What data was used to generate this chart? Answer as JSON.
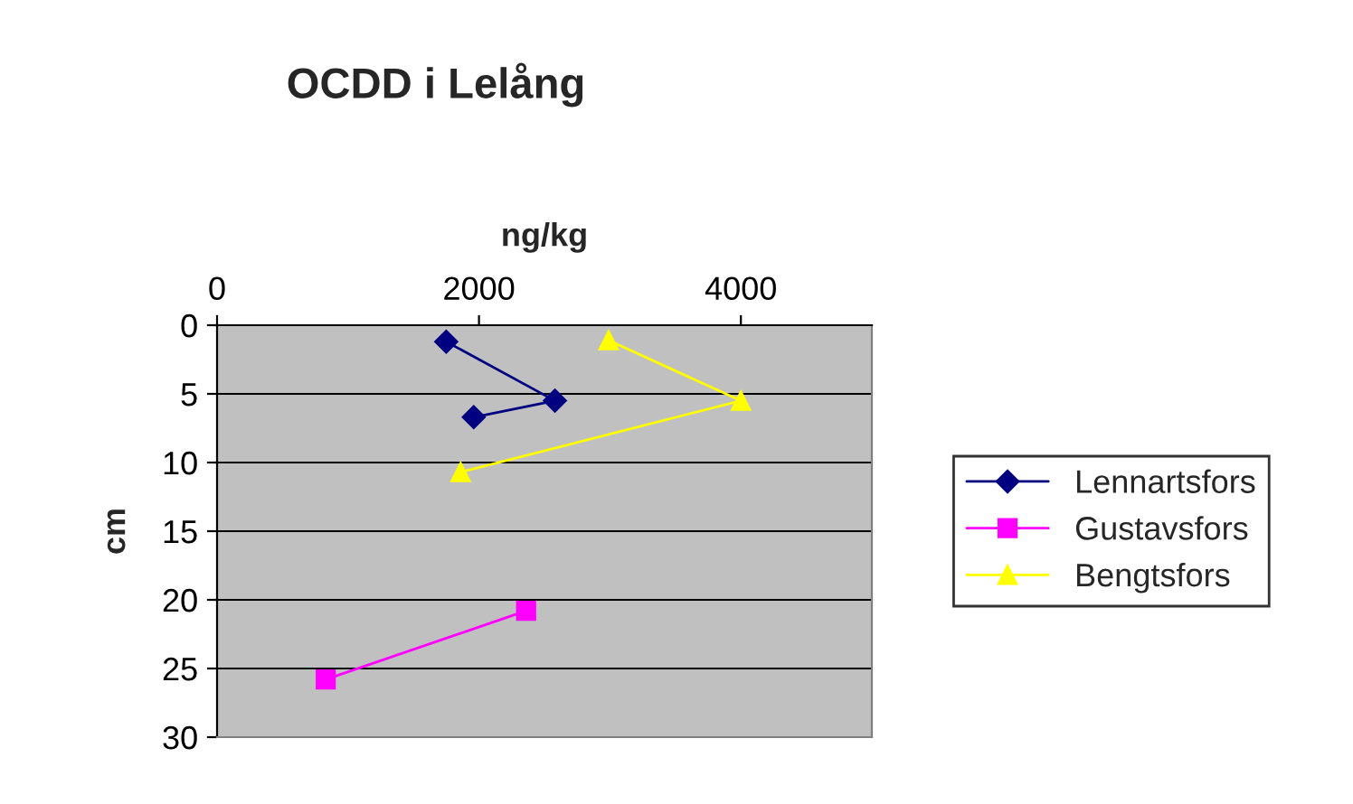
{
  "chart_data": {
    "type": "line",
    "title": "OCDD i Lelång",
    "xlabel": "ng/kg",
    "ylabel": "cm",
    "xlim": [
      0,
      5000
    ],
    "xticks": [
      0,
      2000,
      4000
    ],
    "ylim": [
      30,
      0
    ],
    "yticks": [
      0,
      5,
      10,
      15,
      20,
      25,
      30
    ],
    "grid": "y",
    "legend": "right",
    "line_style": "solid",
    "series": [
      {
        "name": "Lennartsfors",
        "color": "#000080",
        "marker": "diamond",
        "x": [
          1750,
          2580,
          1960
        ],
        "values": [
          1.2,
          5.5,
          6.7
        ]
      },
      {
        "name": "Gustavsfors",
        "color": "#ff00ff",
        "marker": "square",
        "x": [
          2360,
          830
        ],
        "values": [
          20.8,
          25.8
        ]
      },
      {
        "name": "Bengtsfors",
        "color": "#ffff00",
        "marker": "triangle",
        "x": [
          2990,
          4000,
          1860
        ],
        "values": [
          1.1,
          5.5,
          10.7
        ]
      }
    ]
  }
}
